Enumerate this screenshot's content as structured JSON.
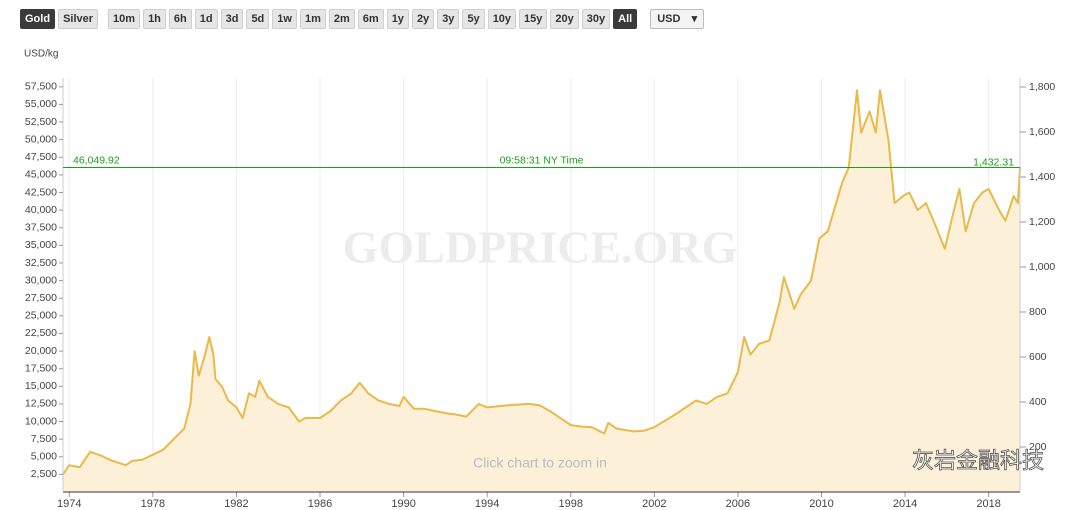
{
  "toolbar": {
    "buttons": [
      {
        "label": "Gold",
        "selected": true
      },
      {
        "label": "Silver",
        "selected": false
      },
      {
        "label": "10m",
        "selected": false
      },
      {
        "label": "1h",
        "selected": false
      },
      {
        "label": "6h",
        "selected": false
      },
      {
        "label": "1d",
        "selected": false
      },
      {
        "label": "3d",
        "selected": false
      },
      {
        "label": "5d",
        "selected": false
      },
      {
        "label": "1w",
        "selected": false
      },
      {
        "label": "1m",
        "selected": false
      },
      {
        "label": "2m",
        "selected": false
      },
      {
        "label": "6m",
        "selected": false
      },
      {
        "label": "1y",
        "selected": false
      },
      {
        "label": "2y",
        "selected": false
      },
      {
        "label": "3y",
        "selected": false
      },
      {
        "label": "5y",
        "selected": false
      },
      {
        "label": "10y",
        "selected": false
      },
      {
        "label": "15y",
        "selected": false
      },
      {
        "label": "20y",
        "selected": false
      },
      {
        "label": "30y",
        "selected": false
      },
      {
        "label": "All",
        "selected": true
      }
    ],
    "currency": "USD"
  },
  "chart_data": {
    "type": "area",
    "y_label": "USD/kg",
    "watermark": "GOLDPRICE.ORG",
    "hint": "Click chart to zoom in",
    "source_mark": "灰岩金融科技",
    "grid": "vertical",
    "x": [
      1973.7,
      1974.0,
      1974.5,
      1975.0,
      1975.5,
      1976.0,
      1976.7,
      1977.0,
      1977.5,
      1978.0,
      1978.5,
      1979.0,
      1979.5,
      1979.8,
      1980.0,
      1980.2,
      1980.5,
      1980.7,
      1980.9,
      1981.0,
      1981.3,
      1981.6,
      1982.0,
      1982.3,
      1982.6,
      1982.9,
      1983.1,
      1983.5,
      1984.0,
      1984.5,
      1985.0,
      1985.3,
      1986.0,
      1986.5,
      1987.0,
      1987.5,
      1987.9,
      1988.3,
      1988.8,
      1989.3,
      1989.8,
      1990.0,
      1990.5,
      1991.0,
      1991.5,
      1992.0,
      1992.5,
      1993.0,
      1993.6,
      1994.0,
      1995.0,
      1996.0,
      1996.5,
      1997.0,
      1997.5,
      1998.0,
      1998.5,
      1999.0,
      1999.6,
      1999.8,
      2000.2,
      2001.0,
      2001.5,
      2002.0,
      2003.0,
      2004.0,
      2004.5,
      2005.0,
      2005.5,
      2006.0,
      2006.3,
      2006.6,
      2007.0,
      2007.5,
      2008.0,
      2008.2,
      2008.7,
      2009.0,
      2009.5,
      2009.9,
      2010.3,
      2010.8,
      2011.0,
      2011.3,
      2011.7,
      2011.9,
      2012.3,
      2012.6,
      2012.8,
      2013.2,
      2013.5,
      2013.9,
      2014.2,
      2014.6,
      2015.0,
      2015.5,
      2015.9,
      2016.3,
      2016.6,
      2016.9,
      2017.3,
      2017.7,
      2018.0,
      2018.5,
      2018.8,
      2019.2,
      2019.4,
      2019.5
    ],
    "series": [
      {
        "name": "Gold",
        "color": "#e9b949",
        "fill": "#fdf0d8",
        "values": [
          2500,
          3800,
          3500,
          5700,
          5200,
          4500,
          3800,
          4400,
          4600,
          5300,
          6000,
          7500,
          9000,
          12500,
          20000,
          16500,
          19500,
          22000,
          19500,
          16000,
          15000,
          13000,
          12000,
          10500,
          14000,
          13500,
          15800,
          13500,
          12500,
          12000,
          10000,
          10500,
          10500,
          11500,
          13000,
          14000,
          15500,
          14000,
          13000,
          12500,
          12200,
          13500,
          11800,
          11800,
          11500,
          11200,
          11000,
          10700,
          12500,
          12000,
          12300,
          12500,
          12300,
          11500,
          10500,
          9500,
          9300,
          9200,
          8300,
          9800,
          9000,
          8600,
          8700,
          9200,
          11000,
          13000,
          12500,
          13500,
          14000,
          17000,
          22000,
          19500,
          21000,
          21500,
          27000,
          30500,
          26000,
          28000,
          30000,
          36000,
          37000,
          42000,
          44000,
          46000,
          57000,
          51000,
          54000,
          51000,
          57000,
          50000,
          41000,
          42000,
          42500,
          40000,
          41000,
          37500,
          34500,
          39500,
          43000,
          37000,
          41000,
          42500,
          43000,
          40000,
          38500,
          42000,
          41000,
          46050
        ]
      }
    ],
    "xlim": [
      1973.7,
      2019.5
    ],
    "xticks": [
      1974,
      1978,
      1982,
      1986,
      1990,
      1994,
      1998,
      2002,
      2006,
      2010,
      2014,
      2018
    ],
    "ylim": [
      0,
      58750
    ],
    "yticks": [
      {
        "value": 2500,
        "label": "2,500"
      },
      {
        "value": 5000,
        "label": "5,000"
      },
      {
        "value": 7500,
        "label": "7,500"
      },
      {
        "value": 10000,
        "label": "10,000"
      },
      {
        "value": 12500,
        "label": "12,500"
      },
      {
        "value": 15000,
        "label": "15,000"
      },
      {
        "value": 17500,
        "label": "17,500"
      },
      {
        "value": 20000,
        "label": "20,000"
      },
      {
        "value": 22500,
        "label": "22,500"
      },
      {
        "value": 25000,
        "label": "25,000"
      },
      {
        "value": 27500,
        "label": "27,500"
      },
      {
        "value": 30000,
        "label": "30,000"
      },
      {
        "value": 32500,
        "label": "32,500"
      },
      {
        "value": 35000,
        "label": "35,000"
      },
      {
        "value": 37500,
        "label": "37,500"
      },
      {
        "value": 40000,
        "label": "40,000"
      },
      {
        "value": 42500,
        "label": "42,500"
      },
      {
        "value": 45000,
        "label": "45,000"
      },
      {
        "value": 47500,
        "label": "47,500"
      },
      {
        "value": 50000,
        "label": "50,000"
      },
      {
        "value": 52500,
        "label": "52,500"
      },
      {
        "value": 55000,
        "label": "55,000"
      },
      {
        "value": 57500,
        "label": "57,500"
      }
    ],
    "y2lim": [
      0,
      1840
    ],
    "y2ticks": [
      200,
      400,
      600,
      800,
      {
        "value": 1000,
        "label": "1,000"
      },
      {
        "value": 1200,
        "label": "1,200"
      },
      {
        "value": 1400,
        "label": "1,400"
      },
      {
        "value": 1600,
        "label": "1,600"
      },
      {
        "value": 1800,
        "label": "1,800"
      }
    ],
    "current": {
      "value": 46049.92,
      "value_label": "46,049.92",
      "time_label": "09:58:31 NY Time",
      "y2_value": 1432.31,
      "y2_value_label": "1,432.31",
      "color": "#1aa01a"
    }
  }
}
